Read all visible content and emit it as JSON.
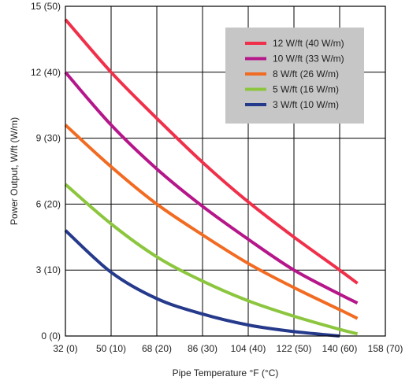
{
  "chart_data": {
    "type": "line",
    "title": "",
    "xlabel": "Pipe Temperature °F (°C)",
    "ylabel": "Power Output, W/ft (W/m)",
    "xlim": [
      32,
      158
    ],
    "ylim": [
      0,
      15
    ],
    "grid": true,
    "legend_position": "top-right",
    "x_ticks": [
      {
        "value": 32,
        "label": "32 (0)"
      },
      {
        "value": 50,
        "label": "50 (10)"
      },
      {
        "value": 68,
        "label": "68 (20)"
      },
      {
        "value": 86,
        "label": "86 (30)"
      },
      {
        "value": 104,
        "label": "104 (40)"
      },
      {
        "value": 122,
        "label": "122 (50)"
      },
      {
        "value": 140,
        "label": "140 (60)"
      },
      {
        "value": 158,
        "label": "158 (70)"
      }
    ],
    "y_ticks": [
      {
        "value": 0,
        "label": "0 (0)"
      },
      {
        "value": 3,
        "label": "3 (10)"
      },
      {
        "value": 6,
        "label": "6 (20)"
      },
      {
        "value": 9,
        "label": "9 (30)"
      },
      {
        "value": 12,
        "label": "12 (40)"
      },
      {
        "value": 15,
        "label": "15 (50)"
      }
    ],
    "series": [
      {
        "name": "12 W/ft (40 W/m)",
        "color": "#f0304a",
        "x": [
          32,
          50,
          68,
          86,
          104,
          122,
          140,
          147
        ],
        "y": [
          14.4,
          12.0,
          9.9,
          7.9,
          6.1,
          4.5,
          3.0,
          2.4
        ]
      },
      {
        "name": "10 W/ft (33 W/m)",
        "color": "#b5168a",
        "x": [
          32,
          50,
          68,
          86,
          104,
          122,
          140,
          147
        ],
        "y": [
          12.0,
          9.6,
          7.6,
          5.9,
          4.4,
          3.0,
          1.9,
          1.5
        ]
      },
      {
        "name": "8 W/ft (26 W/m)",
        "color": "#f26b22",
        "x": [
          32,
          50,
          68,
          86,
          104,
          122,
          140,
          147
        ],
        "y": [
          9.6,
          7.7,
          6.0,
          4.6,
          3.3,
          2.2,
          1.2,
          0.8
        ]
      },
      {
        "name": "5 W/ft (16 W/m)",
        "color": "#8cc63e",
        "x": [
          32,
          50,
          68,
          86,
          104,
          122,
          140,
          147
        ],
        "y": [
          6.9,
          5.1,
          3.6,
          2.5,
          1.6,
          0.9,
          0.3,
          0.1
        ]
      },
      {
        "name": "3 W/ft (10 W/m)",
        "color": "#263a8c",
        "x": [
          32,
          50,
          68,
          86,
          104,
          122,
          140
        ],
        "y": [
          4.8,
          2.9,
          1.7,
          1.0,
          0.5,
          0.2,
          0.0
        ]
      }
    ]
  }
}
